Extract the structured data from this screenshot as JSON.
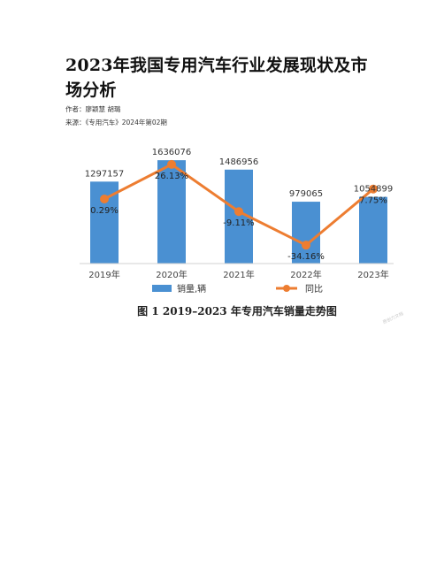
{
  "document": {
    "title": "2023年我国专用汽车行业发展现状及市场分析",
    "author_line": "作者：廖颖慧 胡璐",
    "source_line": "来源：《专用汽车》2024年第02期",
    "watermark": "原创力文档"
  },
  "chart_data": {
    "type": "bar",
    "categories": [
      "2019年",
      "2020年",
      "2021年",
      "2022年",
      "2023年"
    ],
    "series": [
      {
        "name": "销量,辆",
        "type": "bar",
        "values": [
          1297157,
          1636076,
          1486956,
          979065,
          1054899
        ],
        "labels": [
          "1297157",
          "1636076",
          "1486956",
          "979065",
          "1054899"
        ],
        "color": "#4a90d2"
      },
      {
        "name": "同比",
        "type": "line",
        "values": [
          0.29,
          26.13,
          -9.11,
          -34.16,
          7.75
        ],
        "labels": [
          "0.29%",
          "26.13%",
          "-9.11%",
          "-34.16%",
          "7.75%"
        ],
        "color": "#ed7d31"
      }
    ],
    "caption": "图 1   2019–2023 年专用汽车销量走势图",
    "legend_position": "bottom",
    "grid": false
  }
}
